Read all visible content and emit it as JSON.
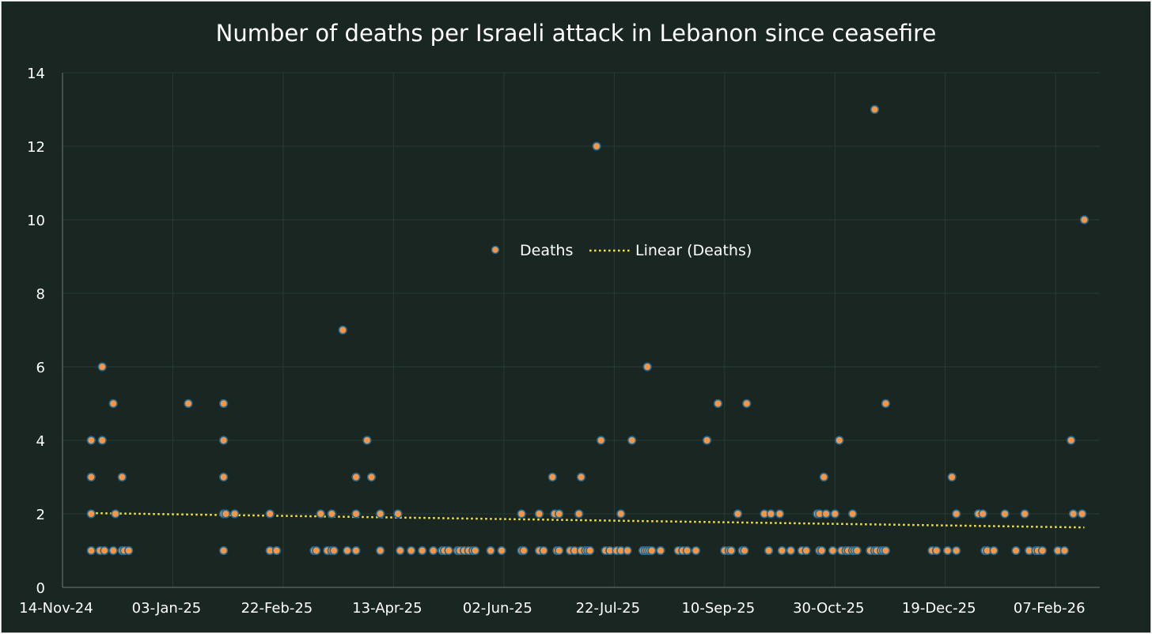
{
  "chart_data": {
    "type": "scatter",
    "title": "Number of deaths per Israeli attack in Lebanon since ceasefire",
    "xlabel": "",
    "ylabel": "",
    "x_unit": "days since 14-Nov-24",
    "xlim": [
      0,
      470
    ],
    "ylim": [
      0,
      14
    ],
    "x_ticks": [
      0,
      50,
      100,
      150,
      200,
      250,
      300,
      350,
      400,
      450
    ],
    "x_tick_labels": [
      "14-Nov-24",
      "03-Jan-25",
      "22-Feb-25",
      "13-Apr-25",
      "02-Jun-25",
      "22-Jul-25",
      "10-Sep-25",
      "30-Oct-25",
      "19-Dec-25",
      "07-Feb-26"
    ],
    "y_ticks": [
      0,
      2,
      4,
      6,
      8,
      10,
      12,
      14
    ],
    "y_tick_labels": [
      "0",
      "2",
      "4",
      "6",
      "8",
      "10",
      "12",
      "14"
    ],
    "grid": true,
    "legend_position": "center",
    "legend": [
      "Deaths",
      "Linear (Deaths)"
    ],
    "series": [
      {
        "name": "Deaths",
        "color": "#F79646",
        "edge_color": "#1F6A94",
        "points_by_value": {
          "1": [
            13,
            17,
            19,
            23,
            27,
            28,
            30,
            73,
            94,
            97,
            114,
            115,
            120,
            122,
            123,
            129,
            133,
            144,
            153,
            158,
            163,
            168,
            172,
            173,
            175,
            179,
            180,
            182,
            184,
            186,
            187,
            194,
            199,
            208,
            209,
            216,
            218,
            224,
            225,
            230,
            232,
            235,
            237,
            238,
            239,
            246,
            248,
            251,
            253,
            256,
            263,
            264,
            265,
            266,
            267,
            271,
            279,
            281,
            283,
            287,
            300,
            302,
            303,
            308,
            309,
            320,
            326,
            330,
            335,
            337,
            343,
            344,
            349,
            353,
            355,
            356,
            358,
            359,
            360,
            366,
            368,
            369,
            371,
            372,
            373,
            394,
            396,
            401,
            405,
            418,
            419,
            422,
            432,
            438,
            441,
            442,
            444,
            451,
            454
          ],
          "2": [
            13,
            24,
            73,
            74,
            78,
            94,
            117,
            122,
            133,
            144,
            152,
            208,
            216,
            223,
            225,
            234,
            253,
            306,
            318,
            321,
            325,
            342,
            343,
            346,
            350,
            358,
            405,
            415,
            417,
            427,
            436,
            458,
            462
          ],
          "3": [
            13,
            27,
            73,
            133,
            140,
            222,
            235,
            345,
            403
          ],
          "4": [
            13,
            18,
            73,
            138,
            244,
            258,
            292,
            352,
            457
          ],
          "5": [
            23,
            57,
            73,
            297,
            310,
            373
          ],
          "6": [
            18,
            265
          ],
          "7": [
            127
          ],
          "10": [
            463
          ],
          "12": [
            242
          ],
          "13": [
            368
          ]
        }
      },
      {
        "name": "Linear (Deaths)",
        "type": "trendline",
        "color": "#FFE81A",
        "start": [
          13,
          2.02
        ],
        "end": [
          463,
          1.63
        ]
      }
    ]
  }
}
